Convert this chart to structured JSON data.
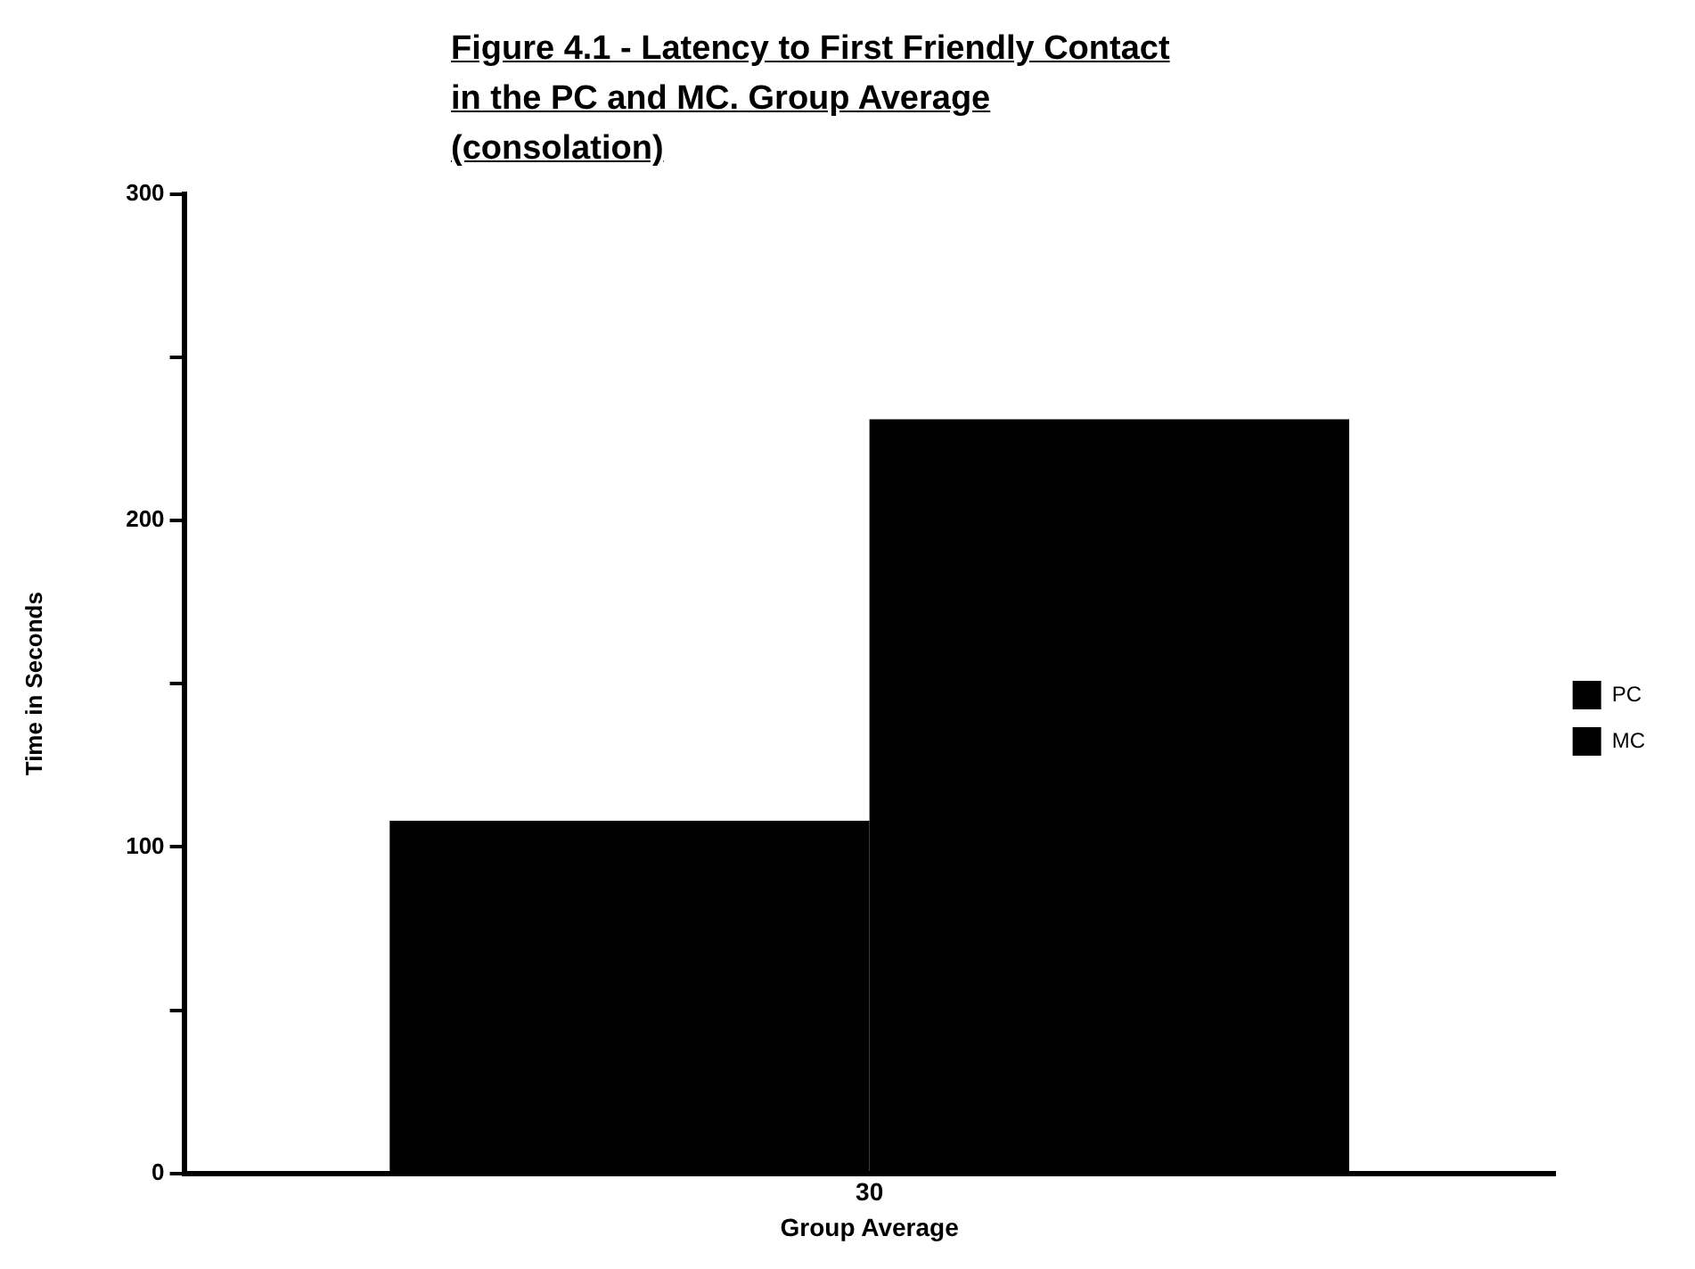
{
  "chart_data": {
    "type": "bar",
    "title": "Figure 4.1 - Latency to First Friendly Contact in the PC and MC. Group Average (consolation)",
    "xlabel": "Group Average",
    "ylabel": "Time in Seconds",
    "categories": [
      "30"
    ],
    "series": [
      {
        "name": "PC",
        "color": "#000000",
        "values": [
          108
        ]
      },
      {
        "name": "MC",
        "color": "#000000",
        "values": [
          231
        ]
      }
    ],
    "ylim": [
      0,
      300
    ],
    "yticks": [
      0,
      {
        "value": 50,
        "label": null
      },
      100,
      {
        "value": 150,
        "label": null
      },
      200,
      {
        "value": 250,
        "label": null
      },
      300
    ],
    "grid": false,
    "legend": "right"
  }
}
